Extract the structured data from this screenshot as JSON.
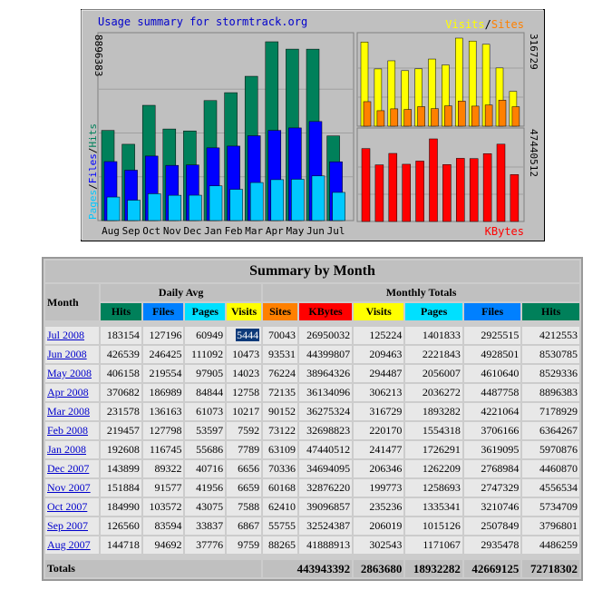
{
  "chart_data": {
    "type": "bar",
    "title": "Usage summary for stormtrack.org",
    "categories": [
      "Aug",
      "Sep",
      "Oct",
      "Nov",
      "Dec",
      "Jan",
      "Feb",
      "Mar",
      "Apr",
      "May",
      "Jun",
      "Jul"
    ],
    "left_panel": {
      "ymax_label": "8896383",
      "ymax": 8896383,
      "axis_words": [
        "Pages",
        "Files",
        "Hits"
      ],
      "series": [
        {
          "name": "Hits",
          "color": "#00805a",
          "values": [
            4486259,
            3796801,
            5734709,
            4556534,
            4460870,
            5970876,
            6364267,
            7178929,
            8896383,
            8530785,
            8529336,
            4212553
          ]
        },
        {
          "name": "Files",
          "color": "#0000ff",
          "values": [
            2935478,
            2507849,
            3210746,
            2747329,
            2768984,
            3619095,
            3706166,
            4221064,
            4487758,
            4610640,
            4928501,
            2925515
          ]
        },
        {
          "name": "Pages",
          "color": "#00c8ff",
          "values": [
            1171067,
            1015126,
            1335341,
            1258693,
            1262209,
            1726291,
            1554318,
            1893282,
            2036272,
            2056007,
            2221843,
            1401833
          ]
        }
      ]
    },
    "right_top_panel": {
      "ymax_label": "316729",
      "ymax": 316729,
      "legend": [
        "Visits",
        "/",
        "Sites"
      ],
      "series": [
        {
          "name": "Visits",
          "color": "#ffff00",
          "values": [
            302543,
            206019,
            235236,
            199773,
            206346,
            241477,
            220170,
            316729,
            306213,
            294487,
            209463,
            125224
          ]
        },
        {
          "name": "Sites",
          "color": "#ff8000",
          "values": [
            88265,
            55755,
            62410,
            60168,
            70336,
            63109,
            73122,
            90152,
            72135,
            76224,
            93531,
            70043
          ]
        }
      ]
    },
    "right_bottom_panel": {
      "ymax_label": "47440512",
      "ymax": 47440512,
      "legend": "KBytes",
      "series": [
        {
          "name": "KBytes",
          "color": "#ff0000",
          "values": [
            41888913,
            32524387,
            39096857,
            32876220,
            34694095,
            47440512,
            32698823,
            36275324,
            36134096,
            38964326,
            44399807,
            26950032
          ]
        }
      ]
    }
  },
  "table": {
    "title": "Summary by Month",
    "month_header": "Month",
    "daily_avg_header": "Daily Avg",
    "monthly_totals_header": "Monthly Totals",
    "col_headers": [
      {
        "label": "Hits",
        "color": "#00805a",
        "text_color": "#000000"
      },
      {
        "label": "Files",
        "color": "#0080ff",
        "text_color": "#000000"
      },
      {
        "label": "Pages",
        "color": "#00e0ff",
        "text_color": "#000000"
      },
      {
        "label": "Visits",
        "color": "#ffff00",
        "text_color": "#000000"
      },
      {
        "label": "Sites",
        "color": "#ff8000",
        "text_color": "#000000"
      },
      {
        "label": "KBytes",
        "color": "#ff0000",
        "text_color": "#000000"
      },
      {
        "label": "Visits",
        "color": "#ffff00",
        "text_color": "#000000"
      },
      {
        "label": "Pages",
        "color": "#00e0ff",
        "text_color": "#000000"
      },
      {
        "label": "Files",
        "color": "#0080ff",
        "text_color": "#000000"
      },
      {
        "label": "Hits",
        "color": "#00805a",
        "text_color": "#000000"
      }
    ],
    "rows": [
      {
        "month": "Jul 2008",
        "cells": [
          "183154",
          "127196",
          "60949",
          "5444",
          "70043",
          "26950032",
          "125224",
          "1401833",
          "2925515",
          "4212553"
        ]
      },
      {
        "month": "Jun 2008",
        "cells": [
          "426539",
          "246425",
          "111092",
          "10473",
          "93531",
          "44399807",
          "209463",
          "2221843",
          "4928501",
          "8530785"
        ]
      },
      {
        "month": "May 2008",
        "cells": [
          "406158",
          "219554",
          "97905",
          "14023",
          "76224",
          "38964326",
          "294487",
          "2056007",
          "4610640",
          "8529336"
        ]
      },
      {
        "month": "Apr 2008",
        "cells": [
          "370682",
          "186989",
          "84844",
          "12758",
          "72135",
          "36134096",
          "306213",
          "2036272",
          "4487758",
          "8896383"
        ]
      },
      {
        "month": "Mar 2008",
        "cells": [
          "231578",
          "136163",
          "61073",
          "10217",
          "90152",
          "36275324",
          "316729",
          "1893282",
          "4221064",
          "7178929"
        ]
      },
      {
        "month": "Feb 2008",
        "cells": [
          "219457",
          "127798",
          "53597",
          "7592",
          "73122",
          "32698823",
          "220170",
          "1554318",
          "3706166",
          "6364267"
        ]
      },
      {
        "month": "Jan 2008",
        "cells": [
          "192608",
          "116745",
          "55686",
          "7789",
          "63109",
          "47440512",
          "241477",
          "1726291",
          "3619095",
          "5970876"
        ]
      },
      {
        "month": "Dec 2007",
        "cells": [
          "143899",
          "89322",
          "40716",
          "6656",
          "70336",
          "34694095",
          "206346",
          "1262209",
          "2768984",
          "4460870"
        ]
      },
      {
        "month": "Nov 2007",
        "cells": [
          "151884",
          "91577",
          "41956",
          "6659",
          "60168",
          "32876220",
          "199773",
          "1258693",
          "2747329",
          "4556534"
        ]
      },
      {
        "month": "Oct 2007",
        "cells": [
          "184990",
          "103572",
          "43075",
          "7588",
          "62410",
          "39096857",
          "235236",
          "1335341",
          "3210746",
          "5734709"
        ]
      },
      {
        "month": "Sep 2007",
        "cells": [
          "126560",
          "83594",
          "33837",
          "6867",
          "55755",
          "32524387",
          "206019",
          "1015126",
          "2507849",
          "3796801"
        ]
      },
      {
        "month": "Aug 2007",
        "cells": [
          "144718",
          "94692",
          "37776",
          "9759",
          "88265",
          "41888913",
          "302543",
          "1171067",
          "2935478",
          "4486259"
        ]
      }
    ],
    "totals": {
      "label": "Totals",
      "cells": [
        "443943392",
        "2863680",
        "18932282",
        "42669125",
        "72718302"
      ]
    }
  }
}
